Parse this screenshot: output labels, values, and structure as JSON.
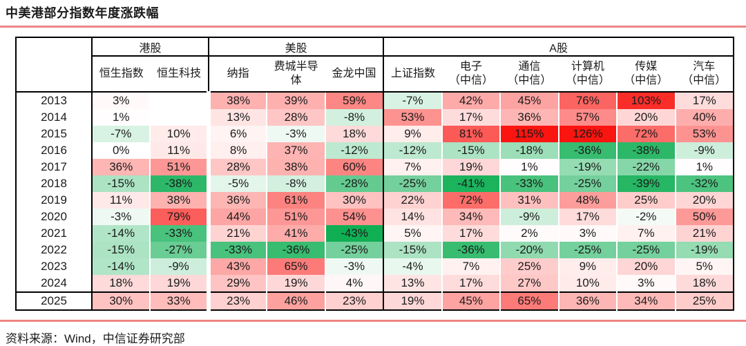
{
  "title": "中美港部分指数年度涨跌幅",
  "source": "资料来源：Wind，中信证券研究部",
  "colors": {
    "accent_rule": "#ee8585",
    "heat_positive_max": "#fa1510",
    "heat_negative_max": "#10af54",
    "heat_positive_clamp": 115,
    "heat_negative_clamp": 43,
    "border": "#000000"
  },
  "chart_data": {
    "type": "heatmap",
    "title": "中美港部分指数年度涨跌幅",
    "unit": "%",
    "legend": "red = positive return, green = negative return, intensity scales with magnitude",
    "column_groups": [
      {
        "label": "港股",
        "span": 2
      },
      {
        "label": "美股",
        "span": 3
      },
      {
        "label": "A股",
        "span": 6
      }
    ],
    "columns": [
      "恒生指数",
      "恒生科技",
      "纳指",
      "费城半导体",
      "金龙中国",
      "上证指数",
      "电子（中信）",
      "通信（中信）",
      "计算机（中信）",
      "传媒（中信）",
      "汽车（中信）"
    ],
    "rows": [
      "2013",
      "2014",
      "2015",
      "2016",
      "2017",
      "2018",
      "2019",
      "2020",
      "2021",
      "2022",
      "2023",
      "2024",
      "2025"
    ],
    "values": [
      [
        3,
        null,
        38,
        39,
        59,
        -7,
        42,
        45,
        76,
        103,
        17
      ],
      [
        1,
        null,
        13,
        28,
        -8,
        53,
        17,
        36,
        57,
        20,
        40
      ],
      [
        -7,
        10,
        6,
        -3,
        18,
        9,
        81,
        115,
        126,
        72,
        53
      ],
      [
        0,
        11,
        8,
        37,
        -12,
        -12,
        -15,
        -18,
        -36,
        -38,
        -9
      ],
      [
        36,
        51,
        28,
        38,
        60,
        7,
        19,
        1,
        -19,
        -22,
        1
      ],
      [
        -15,
        -38,
        -5,
        -8,
        -28,
        -25,
        -41,
        -33,
        -25,
        -39,
        -32
      ],
      [
        11,
        38,
        36,
        61,
        30,
        22,
        72,
        31,
        48,
        25,
        20
      ],
      [
        -3,
        79,
        44,
        51,
        54,
        14,
        34,
        -9,
        17,
        -2,
        50
      ],
      [
        -14,
        -33,
        21,
        41,
        -43,
        5,
        17,
        2,
        3,
        7,
        21
      ],
      [
        -15,
        -27,
        -33,
        -36,
        -25,
        -15,
        -36,
        -20,
        -25,
        -25,
        -19
      ],
      [
        -14,
        -9,
        43,
        65,
        -3,
        -4,
        7,
        25,
        9,
        20,
        5
      ],
      [
        18,
        19,
        29,
        19,
        4,
        13,
        17,
        27,
        10,
        3,
        18
      ],
      [
        30,
        33,
        23,
        46,
        23,
        19,
        45,
        65,
        36,
        34,
        25
      ]
    ],
    "highlight_row": "2025"
  }
}
